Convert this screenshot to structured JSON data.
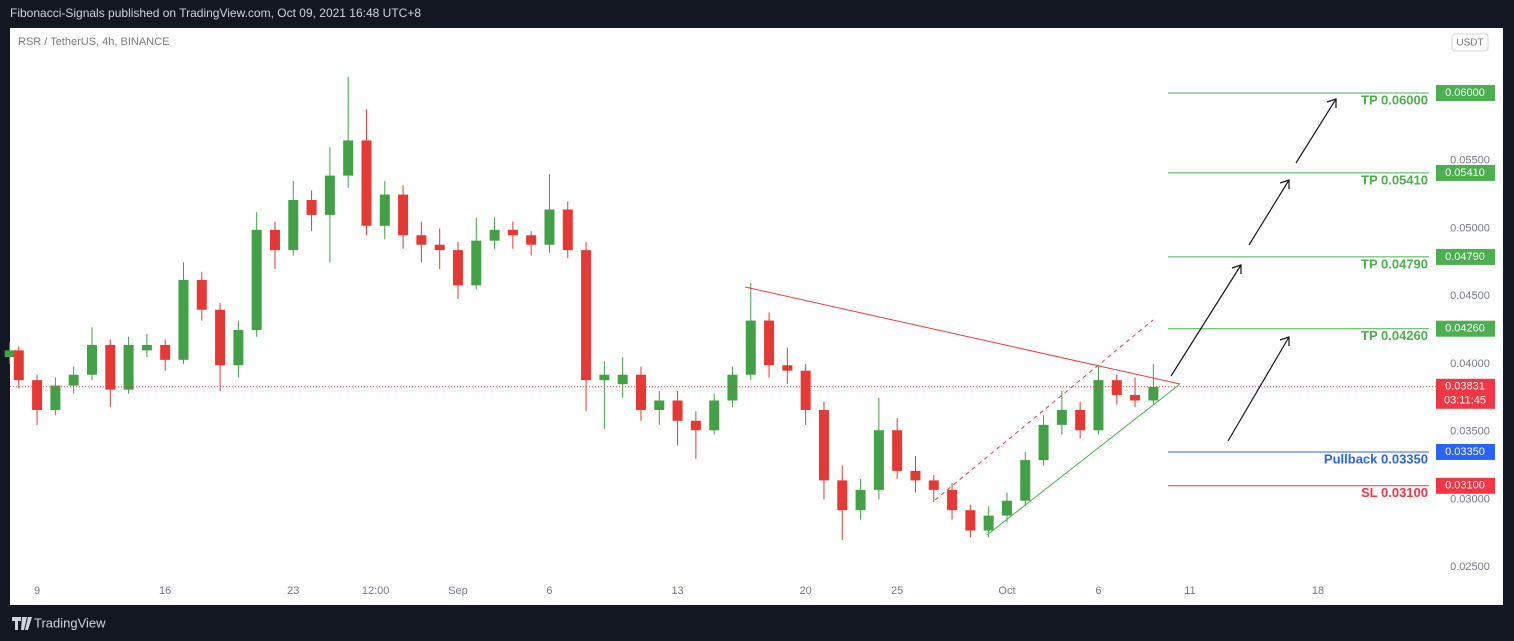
{
  "header": "Fibonacci-Signals published on TradingView.com, Oct 09, 2021 16:48 UTC+8",
  "footer": "TradingView",
  "chart_data": {
    "type": "candlestick",
    "title": "RSR / TetherUS, 4h, BINANCE",
    "currency_button": "USDT",
    "up_color": "#43a047",
    "down_color": "#e53935",
    "grid": false,
    "xlim": [
      -1.48,
      76.5
    ],
    "ylim": [
      0.0222,
      0.0648
    ],
    "xticks": [
      {
        "value": 0,
        "label": "9"
      },
      {
        "value": 7,
        "label": "16"
      },
      {
        "value": 14,
        "label": "23"
      },
      {
        "value": 18.5,
        "label": "12:00"
      },
      {
        "value": 23,
        "label": "Sep"
      },
      {
        "value": 28,
        "label": "6"
      },
      {
        "value": 35,
        "label": "13"
      },
      {
        "value": 42,
        "label": "20"
      },
      {
        "value": 47,
        "label": "25"
      },
      {
        "value": 53,
        "label": "Oct"
      },
      {
        "value": 58,
        "label": "6"
      },
      {
        "value": 63,
        "label": "11"
      },
      {
        "value": 70,
        "label": "18"
      }
    ],
    "yticks": [
      {
        "value": 0.025,
        "label": "0.02500"
      },
      {
        "value": 0.03,
        "label": "0.03000"
      },
      {
        "value": 0.035,
        "label": "0.03500"
      },
      {
        "value": 0.04,
        "label": "0.04000"
      },
      {
        "value": 0.045,
        "label": "0.04500"
      },
      {
        "value": 0.05,
        "label": "0.05000"
      },
      {
        "value": 0.055,
        "label": "0.05500"
      }
    ],
    "x": [
      -1.5,
      -1,
      0,
      1,
      2,
      3,
      4,
      5,
      6,
      7,
      8,
      9,
      10,
      11,
      12,
      13,
      14,
      15,
      16,
      17,
      18,
      19,
      20,
      21,
      22,
      23,
      24,
      25,
      26,
      27,
      28,
      29,
      30,
      31,
      32,
      33,
      34,
      35,
      36,
      37,
      38,
      39,
      40,
      41,
      42,
      43,
      44,
      45,
      46,
      47,
      48,
      49,
      50,
      51,
      52,
      53,
      54,
      55,
      56,
      57,
      58,
      59,
      60,
      61
    ],
    "ohlc": [
      [
        0.0405,
        0.0416,
        0.04,
        0.041
      ],
      [
        0.041,
        0.0413,
        0.0382,
        0.0388
      ],
      [
        0.0388,
        0.0392,
        0.0355,
        0.0366
      ],
      [
        0.0366,
        0.039,
        0.0362,
        0.0384
      ],
      [
        0.0384,
        0.0398,
        0.0378,
        0.0392
      ],
      [
        0.0392,
        0.0427,
        0.0388,
        0.0414
      ],
      [
        0.0414,
        0.0418,
        0.0368,
        0.0381
      ],
      [
        0.0381,
        0.042,
        0.0378,
        0.0414
      ],
      [
        0.041,
        0.0422,
        0.0405,
        0.0414
      ],
      [
        0.0414,
        0.0418,
        0.0395,
        0.0403
      ],
      [
        0.0403,
        0.0475,
        0.04,
        0.0462
      ],
      [
        0.0462,
        0.0468,
        0.0432,
        0.044
      ],
      [
        0.044,
        0.0445,
        0.038,
        0.0399
      ],
      [
        0.0399,
        0.0432,
        0.039,
        0.0425
      ],
      [
        0.0425,
        0.0512,
        0.042,
        0.0499
      ],
      [
        0.0499,
        0.0505,
        0.047,
        0.0484
      ],
      [
        0.0484,
        0.0535,
        0.048,
        0.0521
      ],
      [
        0.0521,
        0.0528,
        0.0498,
        0.051
      ],
      [
        0.051,
        0.056,
        0.0475,
        0.0539
      ],
      [
        0.0539,
        0.0612,
        0.053,
        0.0565
      ],
      [
        0.0565,
        0.0588,
        0.0495,
        0.0502
      ],
      [
        0.0502,
        0.0535,
        0.0492,
        0.0525
      ],
      [
        0.0525,
        0.0532,
        0.0485,
        0.0495
      ],
      [
        0.0495,
        0.0505,
        0.0475,
        0.0488
      ],
      [
        0.0488,
        0.05,
        0.047,
        0.0484
      ],
      [
        0.0484,
        0.049,
        0.0448,
        0.0458
      ],
      [
        0.0458,
        0.0508,
        0.0455,
        0.0491
      ],
      [
        0.0491,
        0.0508,
        0.0485,
        0.0499
      ],
      [
        0.0499,
        0.0505,
        0.0485,
        0.0495
      ],
      [
        0.0495,
        0.0498,
        0.048,
        0.0488
      ],
      [
        0.0488,
        0.054,
        0.0482,
        0.0514
      ],
      [
        0.0514,
        0.052,
        0.0478,
        0.0484
      ],
      [
        0.0484,
        0.049,
        0.0365,
        0.0388
      ],
      [
        0.0388,
        0.0402,
        0.0352,
        0.0392
      ],
      [
        0.0385,
        0.0405,
        0.0375,
        0.0392
      ],
      [
        0.0392,
        0.0398,
        0.0358,
        0.0366
      ],
      [
        0.0366,
        0.038,
        0.0355,
        0.0373
      ],
      [
        0.0373,
        0.038,
        0.034,
        0.0358
      ],
      [
        0.0358,
        0.0365,
        0.033,
        0.0351
      ],
      [
        0.0351,
        0.0378,
        0.0348,
        0.0373
      ],
      [
        0.0373,
        0.0398,
        0.0368,
        0.0392
      ],
      [
        0.0392,
        0.046,
        0.0388,
        0.0432
      ],
      [
        0.0432,
        0.0438,
        0.039,
        0.0399
      ],
      [
        0.0399,
        0.0412,
        0.0385,
        0.0395
      ],
      [
        0.0395,
        0.04,
        0.0355,
        0.0366
      ],
      [
        0.0366,
        0.0372,
        0.03,
        0.0314
      ],
      [
        0.0314,
        0.0325,
        0.027,
        0.0292
      ],
      [
        0.0292,
        0.0315,
        0.0285,
        0.0307
      ],
      [
        0.0307,
        0.0375,
        0.03,
        0.0351
      ],
      [
        0.0351,
        0.036,
        0.0315,
        0.0321
      ],
      [
        0.0321,
        0.0332,
        0.0305,
        0.0314
      ],
      [
        0.0314,
        0.0318,
        0.0298,
        0.0307
      ],
      [
        0.0307,
        0.0312,
        0.0285,
        0.0292
      ],
      [
        0.0292,
        0.0296,
        0.0272,
        0.0277
      ],
      [
        0.0277,
        0.0295,
        0.0272,
        0.0288
      ],
      [
        0.0288,
        0.0305,
        0.0283,
        0.0299
      ],
      [
        0.0299,
        0.0335,
        0.0295,
        0.0329
      ],
      [
        0.0329,
        0.0362,
        0.0325,
        0.0355
      ],
      [
        0.0355,
        0.038,
        0.0348,
        0.0366
      ],
      [
        0.0366,
        0.0372,
        0.0345,
        0.0351
      ],
      [
        0.0351,
        0.0398,
        0.0348,
        0.0388
      ],
      [
        0.0388,
        0.0392,
        0.037,
        0.0377
      ],
      [
        0.0377,
        0.039,
        0.0368,
        0.0373
      ],
      [
        0.0373,
        0.04,
        0.037,
        0.03831
      ]
    ],
    "levels": [
      {
        "text": "TP 0.06000",
        "value": 0.06,
        "value_label": "0.06000",
        "color": "#4caf50"
      },
      {
        "text": "TP 0.05410",
        "value": 0.0541,
        "value_label": "0.05410",
        "color": "#4caf50"
      },
      {
        "text": "TP 0.04790",
        "value": 0.0479,
        "value_label": "0.04790",
        "color": "#4caf50"
      },
      {
        "text": "TP 0.04260",
        "value": 0.0426,
        "value_label": "0.04260",
        "color": "#4caf50"
      },
      {
        "text": "Pullback 0.03350",
        "value": 0.0335,
        "value_label": "0.03350",
        "color": "#2962ff"
      },
      {
        "text": "SL 0.03100",
        "value": 0.031,
        "value_label": "0.03100",
        "color": "#f23645"
      }
    ],
    "last_price": {
      "value": 0.03831,
      "label": "0.03831",
      "countdown": "03:11:45",
      "color": "#f23645"
    }
  }
}
